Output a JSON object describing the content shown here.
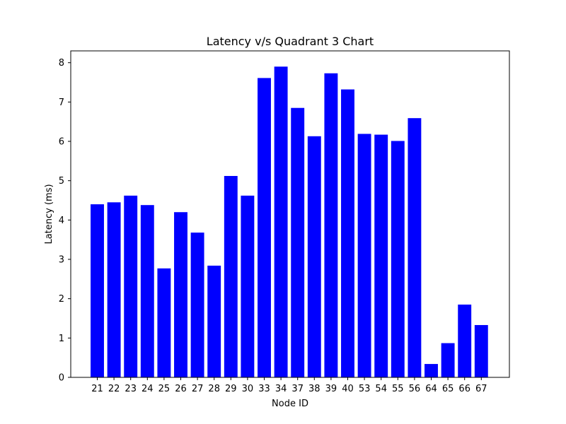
{
  "chart_data": {
    "type": "bar",
    "title": "Latency v/s Quadrant 3 Chart",
    "xlabel": "Node ID",
    "ylabel": "Latency (ms)",
    "categories": [
      "21",
      "22",
      "23",
      "24",
      "25",
      "26",
      "27",
      "28",
      "29",
      "30",
      "33",
      "34",
      "37",
      "38",
      "39",
      "40",
      "53",
      "54",
      "55",
      "56",
      "64",
      "65",
      "66",
      "67"
    ],
    "values": [
      4.4,
      4.45,
      4.62,
      4.38,
      2.77,
      4.2,
      3.68,
      2.84,
      5.12,
      4.62,
      7.61,
      7.9,
      6.85,
      6.13,
      7.73,
      7.32,
      6.19,
      6.17,
      6.01,
      6.59,
      0.34,
      0.87,
      1.85,
      1.33
    ],
    "ylim": [
      0,
      8.3
    ],
    "yticks": [
      0,
      1,
      2,
      3,
      4,
      5,
      6,
      7,
      8
    ],
    "bar_color": "#0000ff",
    "grid": false
  }
}
